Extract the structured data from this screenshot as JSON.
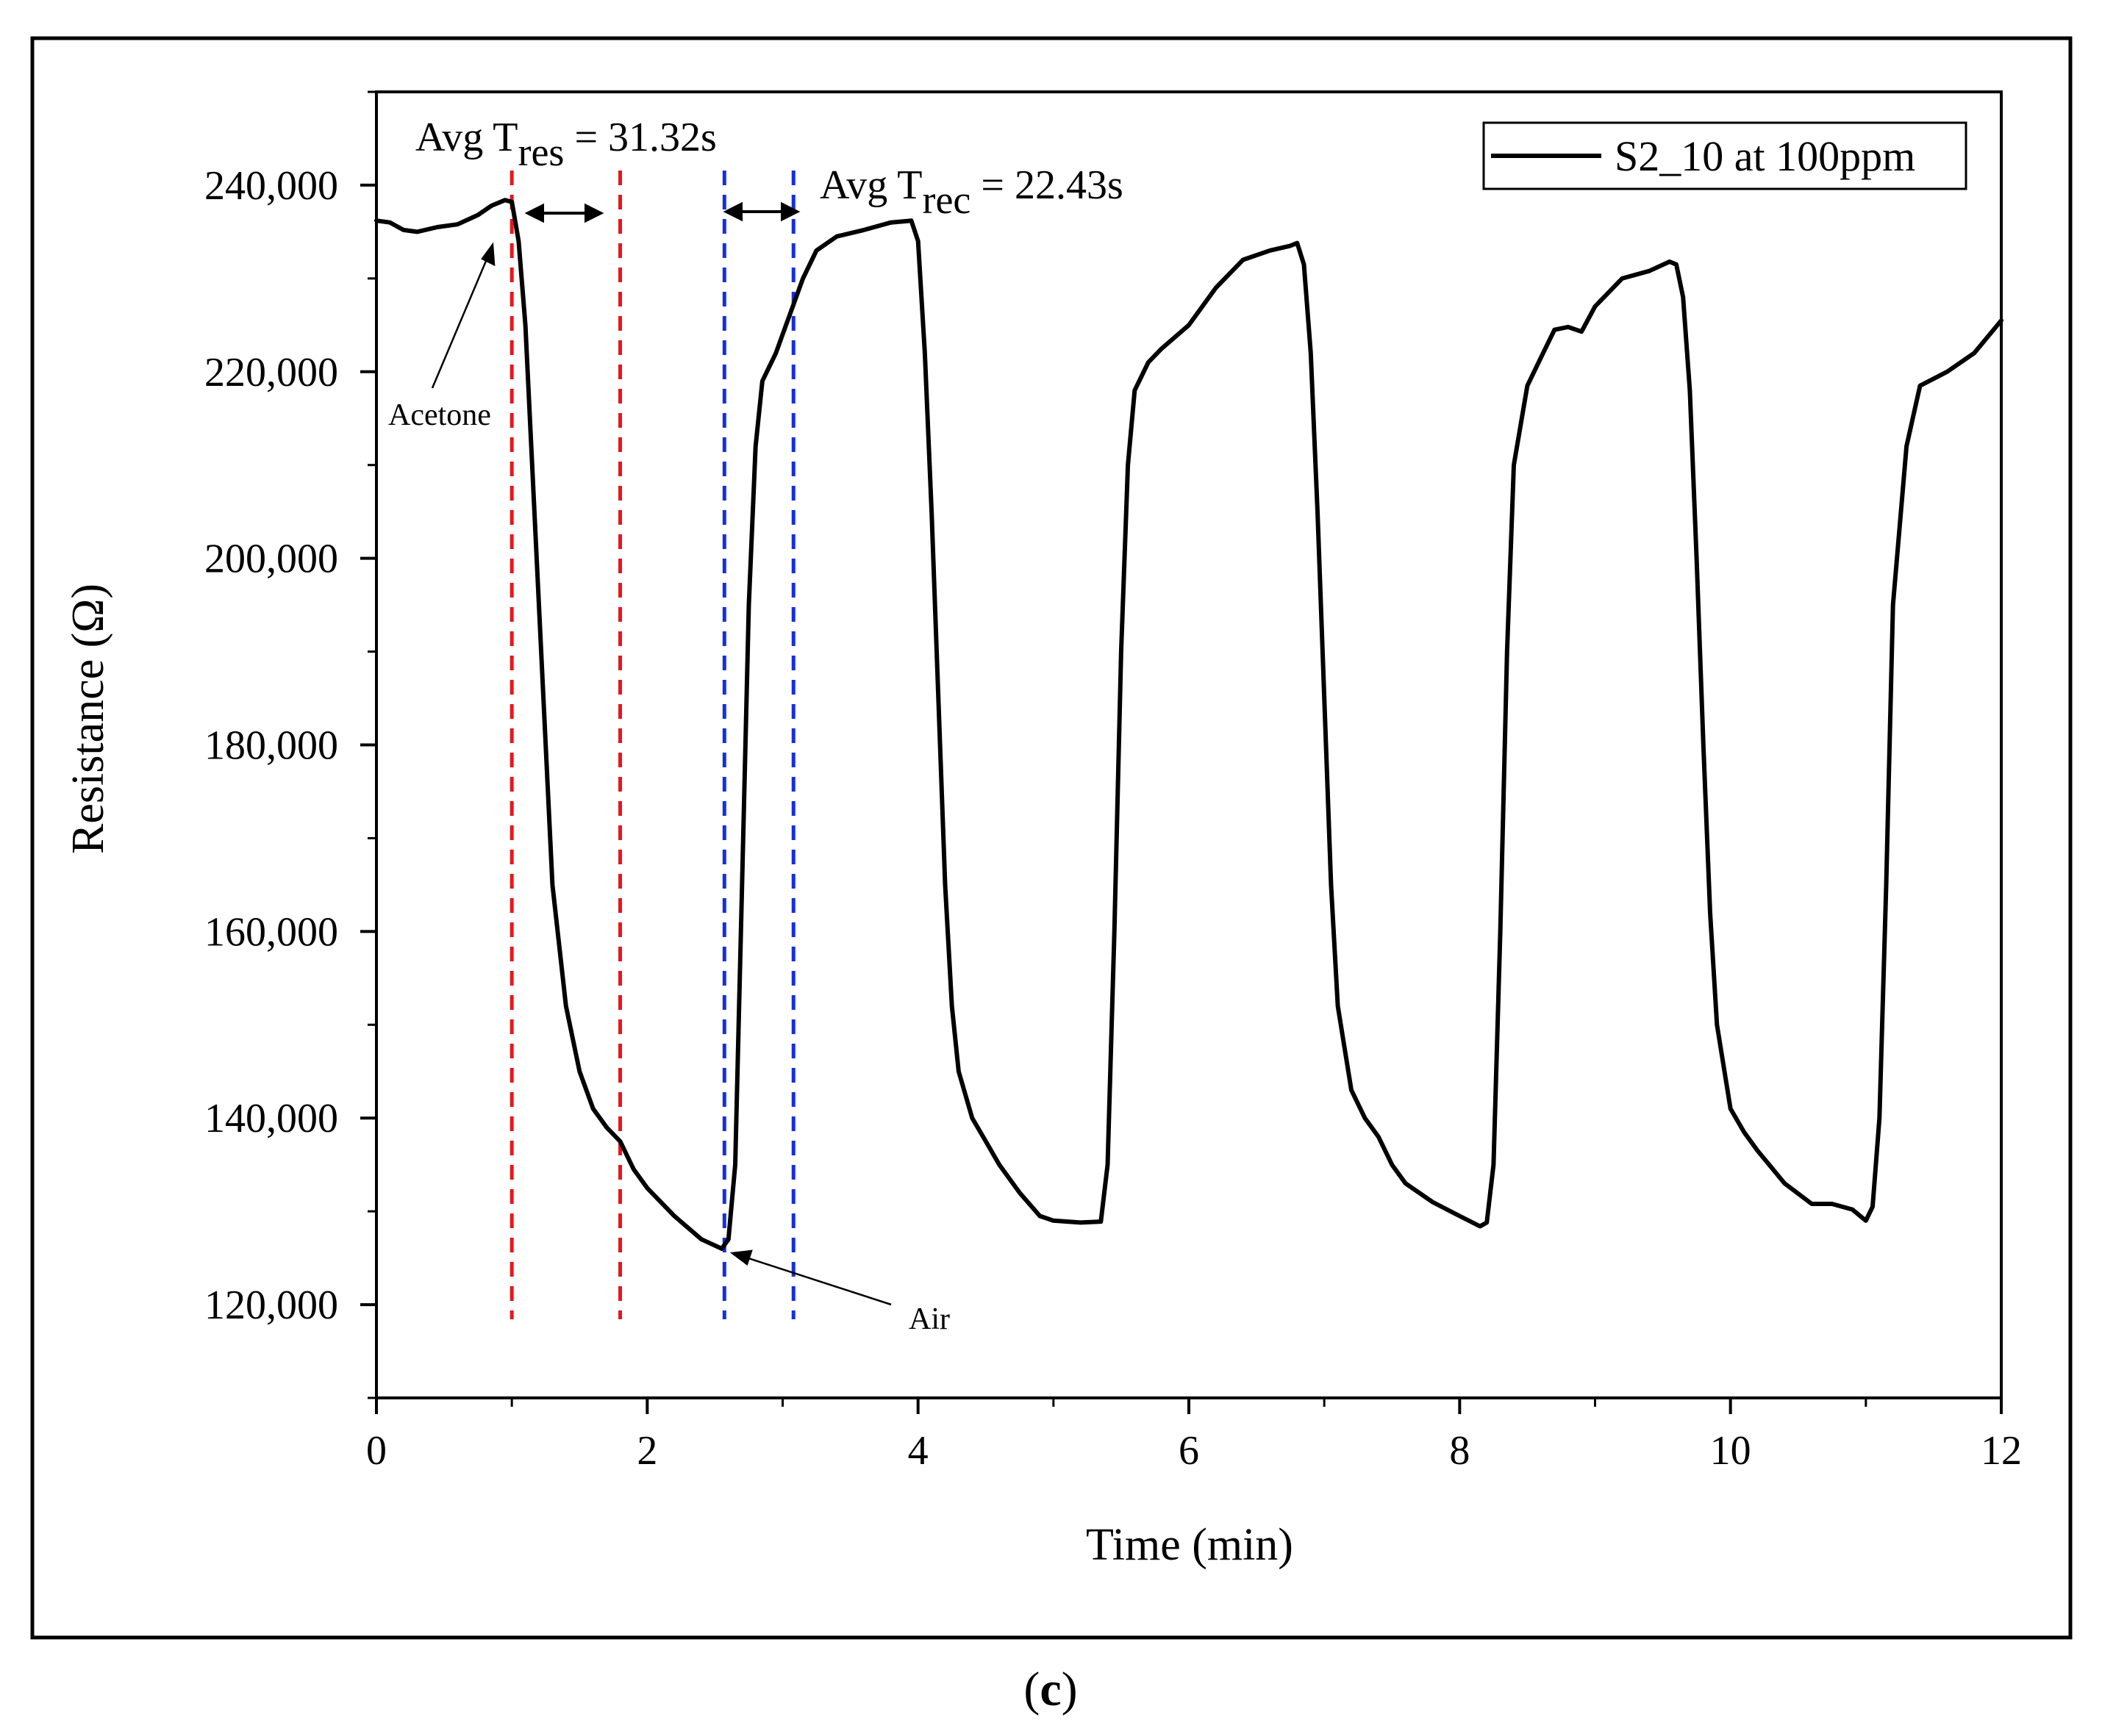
{
  "chart_data": {
    "type": "line",
    "title": "",
    "xlabel": "Time (min)",
    "ylabel": "Resistance (Ω)",
    "xlim": [
      0,
      12
    ],
    "ylim": [
      110000,
      250000
    ],
    "grid": false,
    "x_ticks": [
      0,
      2,
      4,
      6,
      8,
      10,
      12
    ],
    "x_tick_labels": [
      "0",
      "2",
      "4",
      "6",
      "8",
      "10",
      "12"
    ],
    "y_ticks": [
      120000,
      140000,
      160000,
      180000,
      200000,
      220000,
      240000
    ],
    "y_tick_labels": [
      "120,000",
      "140,000",
      "160,000",
      "180,000",
      "200,000",
      "220,000",
      "240,000"
    ],
    "legend": {
      "position": "top-right",
      "entries": [
        "S2_10 at 100ppm"
      ]
    },
    "series": [
      {
        "name": "S2_10 at 100ppm",
        "color": "#000000",
        "x": [
          0,
          0.1,
          0.2,
          0.3,
          0.45,
          0.6,
          0.75,
          0.85,
          0.95,
          1.0,
          1.05,
          1.1,
          1.15,
          1.2,
          1.25,
          1.3,
          1.4,
          1.5,
          1.6,
          1.7,
          1.8,
          1.9,
          2.0,
          2.2,
          2.4,
          2.55,
          2.6,
          2.65,
          2.7,
          2.75,
          2.8,
          2.85,
          2.95,
          3.05,
          3.15,
          3.25,
          3.4,
          3.6,
          3.8,
          3.95,
          4.0,
          4.05,
          4.1,
          4.15,
          4.2,
          4.25,
          4.3,
          4.4,
          4.5,
          4.6,
          4.75,
          4.9,
          5.0,
          5.2,
          5.35,
          5.4,
          5.45,
          5.5,
          5.55,
          5.6,
          5.7,
          5.8,
          6.0,
          6.2,
          6.4,
          6.6,
          6.75,
          6.8,
          6.85,
          6.9,
          6.95,
          7.0,
          7.05,
          7.1,
          7.2,
          7.3,
          7.4,
          7.5,
          7.6,
          7.8,
          8.0,
          8.15,
          8.2,
          8.25,
          8.3,
          8.35,
          8.4,
          8.5,
          8.6,
          8.7,
          8.8,
          8.9,
          9.0,
          9.2,
          9.4,
          9.55,
          9.6,
          9.65,
          9.7,
          9.75,
          9.8,
          9.85,
          9.9,
          10.0,
          10.1,
          10.2,
          10.4,
          10.6,
          10.75,
          10.9,
          11.0,
          11.05,
          11.1,
          11.15,
          11.2,
          11.3,
          11.4,
          11.6,
          11.8,
          12.0
        ],
        "values": [
          236200,
          236000,
          235200,
          235000,
          235500,
          235800,
          236800,
          237800,
          238400,
          238200,
          234000,
          225000,
          210000,
          195000,
          180000,
          165000,
          152000,
          145000,
          141000,
          139000,
          137500,
          134500,
          132500,
          129500,
          127000,
          126000,
          127000,
          135000,
          165000,
          195000,
          212000,
          219000,
          222000,
          226000,
          230000,
          233000,
          234500,
          235200,
          236000,
          236200,
          234000,
          222000,
          205000,
          185000,
          165000,
          152000,
          145000,
          140000,
          137500,
          135000,
          132000,
          129500,
          129000,
          128800,
          128900,
          135000,
          160000,
          190000,
          210000,
          218000,
          221000,
          222500,
          225000,
          229000,
          232000,
          233000,
          233500,
          233800,
          231500,
          222000,
          205000,
          185000,
          165000,
          152000,
          143000,
          140000,
          138000,
          135000,
          133000,
          131000,
          129500,
          128400,
          128800,
          135000,
          160000,
          190000,
          210000,
          218500,
          221500,
          224500,
          224800,
          224300,
          227000,
          230000,
          230800,
          231800,
          231500,
          228000,
          218000,
          200000,
          180000,
          162000,
          150000,
          141000,
          138500,
          136500,
          133000,
          130800,
          130800,
          130200,
          129000,
          130500,
          140000,
          165000,
          195000,
          212000,
          218500,
          220000,
          222000,
          225500
        ]
      }
    ],
    "reference_lines": [
      {
        "orientation": "vertical",
        "x": 1.0,
        "color": "#e8161c",
        "style": "dashed"
      },
      {
        "orientation": "vertical",
        "x": 1.8,
        "color": "#e8161c",
        "style": "dashed"
      },
      {
        "orientation": "vertical",
        "x": 2.57,
        "color": "#1530e0",
        "style": "dashed"
      },
      {
        "orientation": "vertical",
        "x": 3.08,
        "color": "#1530e0",
        "style": "dashed"
      }
    ],
    "annotations": {
      "response": {
        "prefix": "Avg T",
        "subscript": "res",
        "suffix": " = 31.32s"
      },
      "recovery": {
        "prefix": "Avg T",
        "subscript": "rec",
        "suffix": " = 22.43s"
      },
      "acetone_label": "Acetone",
      "air_label": "Air"
    }
  },
  "caption": {
    "open": "(",
    "letter": "c",
    "close": ")"
  }
}
